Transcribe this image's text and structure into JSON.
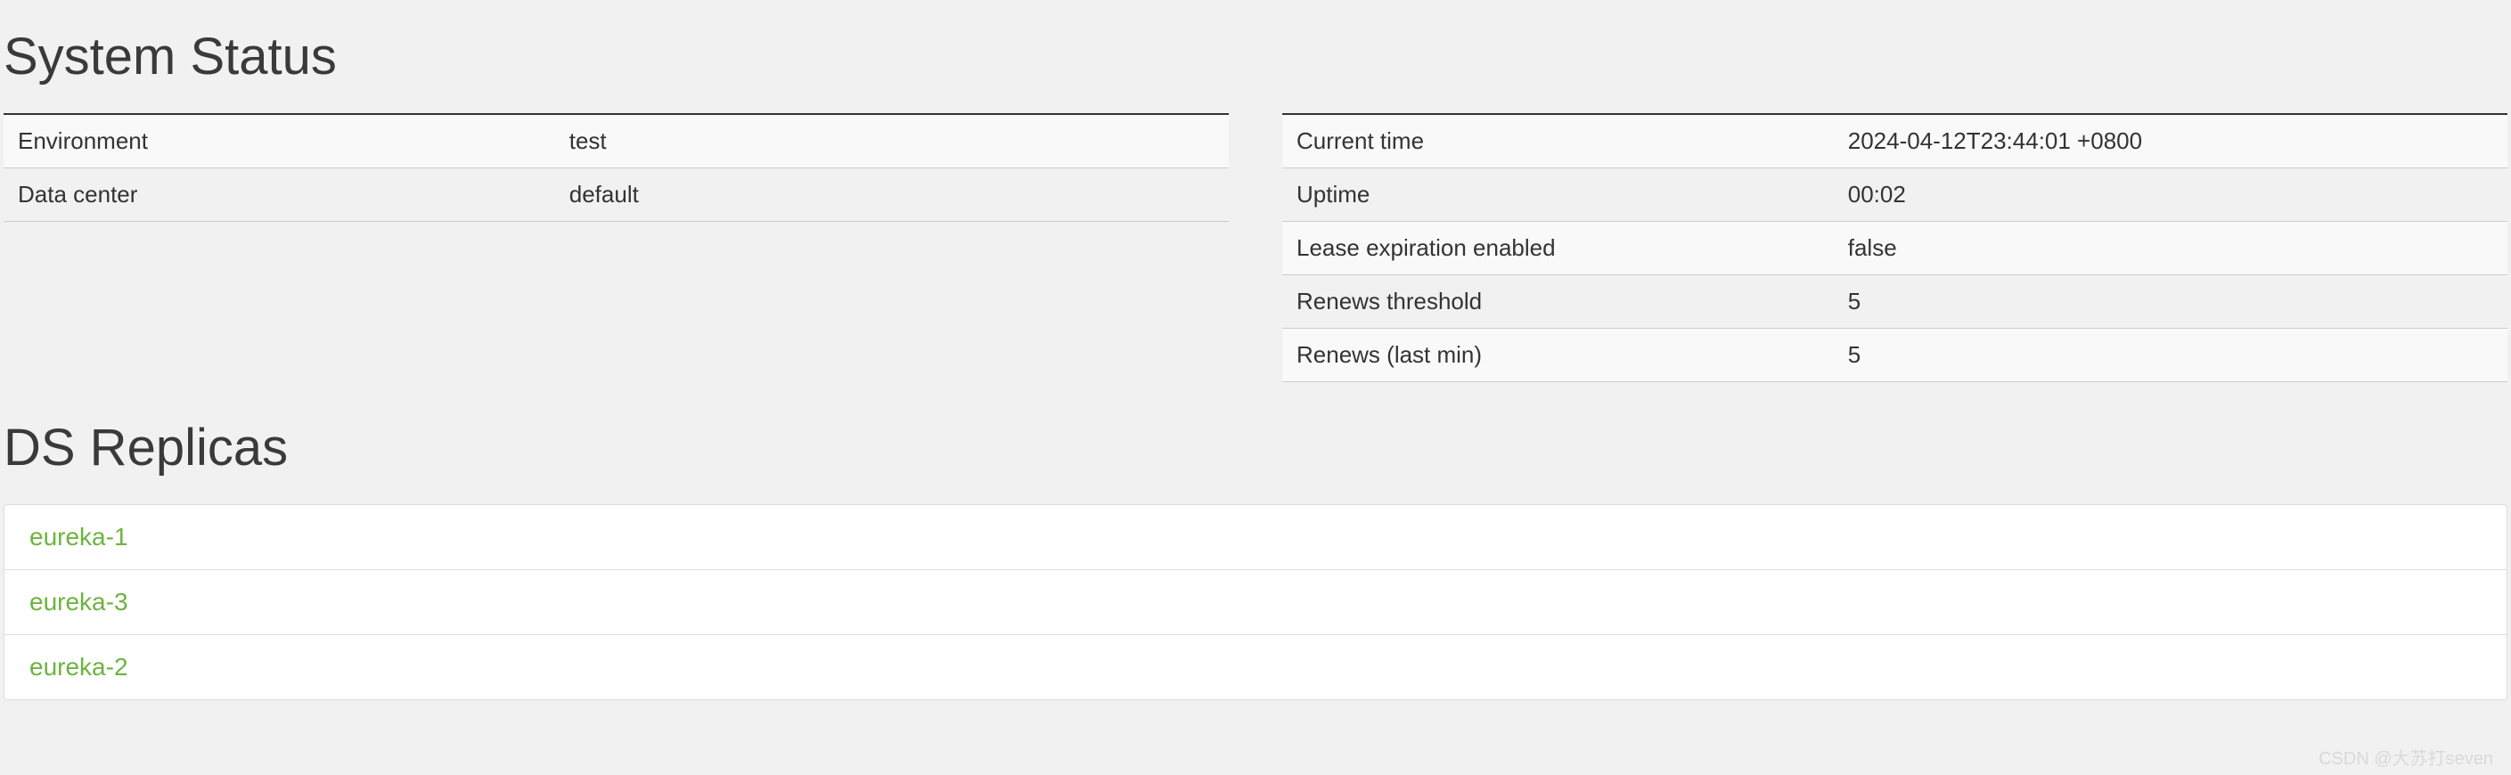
{
  "colors": {
    "page_bg": "#f1f1f1",
    "text": "#333333",
    "heading": "#3a3a3a",
    "link_green": "#6db33f",
    "row_stripe": "#f9f9f9",
    "border_light": "#dddddd",
    "border_top": "#333333"
  },
  "system_status": {
    "title": "System Status",
    "left_table": [
      {
        "label": "Environment",
        "value": "test"
      },
      {
        "label": "Data center",
        "value": "default"
      }
    ],
    "right_table": [
      {
        "label": "Current time",
        "value": "2024-04-12T23:44:01 +0800"
      },
      {
        "label": "Uptime",
        "value": "00:02"
      },
      {
        "label": "Lease expiration enabled",
        "value": "false"
      },
      {
        "label": "Renews threshold",
        "value": "5"
      },
      {
        "label": "Renews (last min)",
        "value": "5"
      }
    ]
  },
  "ds_replicas": {
    "title": "DS Replicas",
    "items": [
      {
        "name": "eureka-1"
      },
      {
        "name": "eureka-3"
      },
      {
        "name": "eureka-2"
      }
    ]
  },
  "watermark": "CSDN @大苏打seven"
}
